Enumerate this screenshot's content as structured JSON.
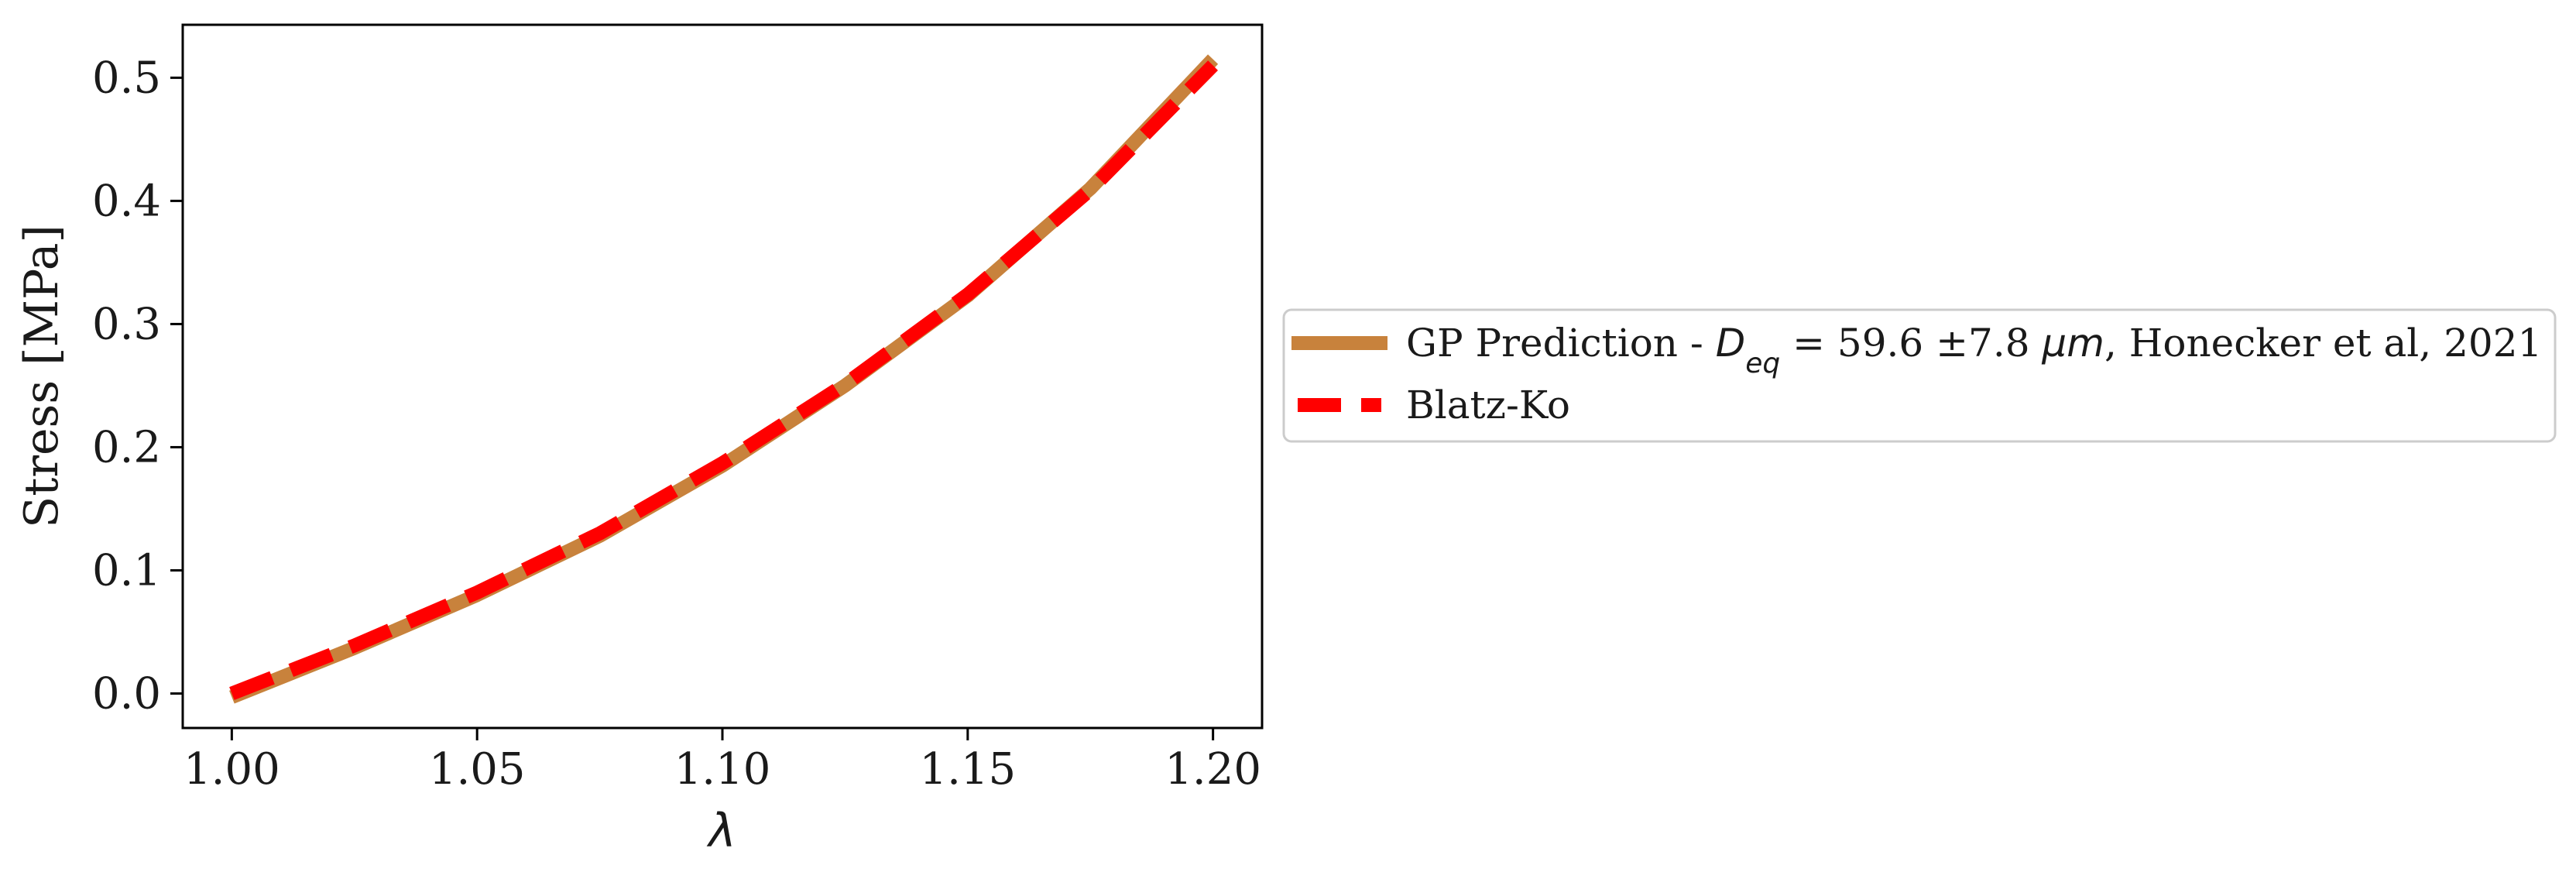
{
  "chart_data": {
    "type": "line",
    "title": "",
    "xlabel": "λ",
    "ylabel": "Stress [MPa]",
    "xlim": [
      0.99,
      1.21
    ],
    "ylim": [
      -0.028,
      0.543
    ],
    "xticks": [
      1.0,
      1.05,
      1.1,
      1.15,
      1.2
    ],
    "xtick_labels": [
      "1.00",
      "1.05",
      "1.10",
      "1.15",
      "1.20"
    ],
    "yticks": [
      0.0,
      0.1,
      0.2,
      0.3,
      0.4,
      0.5
    ],
    "ytick_labels": [
      "0.0",
      "0.1",
      "0.2",
      "0.3",
      "0.4",
      "0.5"
    ],
    "grid": false,
    "legend_position": "outside-right",
    "series": [
      {
        "name": "GP Prediction - D_eq = 59.6 ±7.8 μm, Honecker et al, 2021",
        "color": "#c8823c",
        "style": "solid",
        "x": [
          1.0,
          1.025,
          1.05,
          1.075,
          1.1,
          1.125,
          1.15,
          1.175,
          1.2
        ],
        "y": [
          -0.003,
          0.037,
          0.08,
          0.128,
          0.185,
          0.25,
          0.323,
          0.41,
          0.515
        ]
      },
      {
        "name": "Blatz-Ko",
        "color": "#ff0000",
        "style": "dashed",
        "x": [
          1.0,
          1.025,
          1.05,
          1.075,
          1.1,
          1.125,
          1.15,
          1.175,
          1.2
        ],
        "y": [
          0.0,
          0.039,
          0.082,
          0.13,
          0.187,
          0.251,
          0.324,
          0.409,
          0.51
        ]
      }
    ]
  },
  "legend": {
    "entry1": {
      "prefix": "GP Prediction - ",
      "symbol": "D",
      "subscript": "eq",
      "middle": " = 59.6 ±7.8 ",
      "unit": "μm",
      "suffix": ", Honecker et al, 2021"
    },
    "entry2": {
      "label": "Blatz-Ko"
    }
  }
}
